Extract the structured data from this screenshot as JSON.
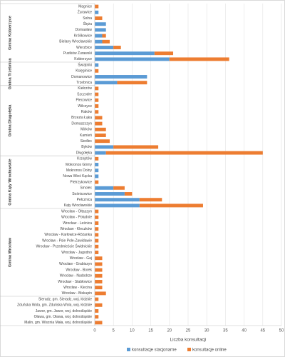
{
  "chart_data": {
    "type": "bar",
    "orientation": "horizontal",
    "stacked": true,
    "x_label": "Liczba konsultacji",
    "xlim": [
      0,
      50
    ],
    "xticks": [
      0,
      5,
      10,
      15,
      20,
      25,
      30,
      35,
      40,
      45,
      50
    ],
    "grid": true,
    "legend": "bottom",
    "groups": [
      {
        "name": "Gmina Kobierzyce",
        "categories": [
          "Magnice",
          "Żurawice",
          "Solna",
          "Ślęża",
          "Domasław",
          "Królikowice",
          "Bielany Wrocławskie",
          "Wierzbice",
          "Pustków Żurawski",
          "Kobierzyce"
        ]
      },
      {
        "name": "Gmina Trzebnica",
        "categories": [
          "Świątniki",
          "Księginice",
          "Domanowice",
          "Trzebnica"
        ]
      },
      {
        "name": "Gmina Długołęka",
        "categories": [
          "Kiełczów",
          "Szczodre",
          "Piecowice",
          "Wilczyce",
          "Raków",
          "Brzezia Łąka",
          "Domaszczyn",
          "Mirków",
          "Kamień",
          "Siedlec",
          "Byków",
          "Długołęka"
        ]
      },
      {
        "name": "Gmina Kąty Wrocławskie",
        "categories": [
          "Krzeptów",
          "Mokronos Górny",
          "Mokronos Dolny",
          "Nowa Wieś Kącka",
          "Pietrzykowice",
          "Smolec",
          "Sośnicowice",
          "Pełcznica",
          "Kąty Wrocławskie"
        ]
      },
      {
        "name": "Gmina Wrocław",
        "categories": [
          "Wrocław - Ołtaszyn",
          "Wrocław - Południe",
          "Wrocław - Leśnica",
          "Wrocław - Kleczków",
          "Wrocław - Karłowice-Różanka",
          "Wrocław - Psie Pole-Zawidawie",
          "Wrocław - Przedmieście Świdnickie",
          "Wrocław - Jagodno",
          "Wrocław - Gaj",
          "Wrocław - Grabiszyn",
          "Wrocław - Borek",
          "Wrocław - Nadodrze",
          "Wrocław - Stabłowice",
          "Wrocław - Klecina",
          "Wrocław - Biskupin"
        ]
      },
      {
        "name": null,
        "categories": [
          "Sieradz, gm. Sieradz, woj. łódzkie",
          "Zduńska Wola, gm. Zduńska Wola, woj. łódzkie",
          "Jawor, gm. Jawor, woj. dolnośląskie",
          "Oława, gm. Oława, woj. dolnośląskie",
          "Malin, gm. Wisznia Mała, woj. dolnośląskie"
        ]
      }
    ],
    "series": [
      {
        "name": "konsultacje stacjonarne",
        "color": "#5b9bd5",
        "values": [
          0,
          1,
          0,
          3,
          3,
          2,
          2,
          5,
          16,
          20,
          1,
          0,
          14,
          6,
          0,
          0,
          0,
          0,
          0,
          0,
          0,
          0,
          0,
          0,
          5,
          3,
          0,
          1,
          1,
          1,
          0,
          5,
          8,
          12,
          12,
          0,
          0,
          0,
          0,
          0,
          0,
          0,
          0,
          0,
          0,
          0,
          0,
          0,
          0,
          0,
          0,
          0,
          0,
          0,
          0
        ]
      },
      {
        "name": "konsultacje online",
        "color": "#ed7d31",
        "values": [
          1,
          0,
          2,
          0,
          0,
          1,
          2,
          2,
          5,
          16,
          0,
          1,
          0,
          8,
          1,
          1,
          1,
          1,
          1,
          2,
          2,
          3,
          3,
          4,
          12,
          42,
          1,
          0,
          0,
          0,
          1,
          3,
          2,
          6,
          17,
          1,
          1,
          1,
          1,
          1,
          1,
          1,
          1,
          2,
          2,
          2,
          2,
          2,
          2,
          3,
          1,
          2,
          1,
          1,
          2
        ]
      }
    ]
  }
}
